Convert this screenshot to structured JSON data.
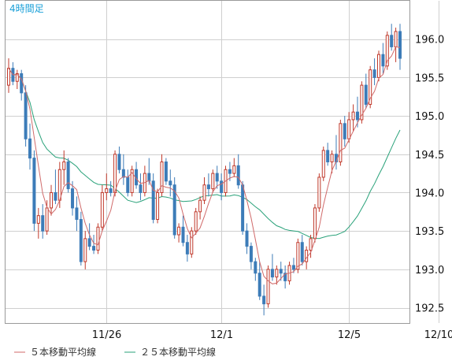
{
  "colors": {
    "up": "#c0392b",
    "down": "#3d7cb8",
    "ma5": "#d06a6a",
    "ma25": "#2aa27a",
    "grid": "#cfcfcf",
    "frame": "#9a9a9a",
    "period_label": "#1aa0d8"
  },
  "chart_data": {
    "type": "candlestick",
    "period_label": "4時間足",
    "ylim": [
      192.3,
      196.5
    ],
    "y_ticks": [
      "192.5",
      "193.0",
      "193.5",
      "194.0",
      "194.5",
      "195.0",
      "195.5",
      "196.0"
    ],
    "y_tick_values": [
      192.5,
      193.0,
      193.5,
      194.0,
      194.5,
      195.0,
      195.5,
      196.0
    ],
    "x_ticks": [
      {
        "label": "11/26",
        "index": 23
      },
      {
        "label": "12/1",
        "index": 50
      },
      {
        "label": "12/5",
        "index": 80
      },
      {
        "label": "12/10",
        "index": 101
      }
    ],
    "series_legend": [
      {
        "name": "５本移動平均線",
        "color": "#d06a6a"
      },
      {
        "name": "２５本移動平均線",
        "color": "#2aa27a"
      }
    ],
    "candles": [
      [
        195.4,
        195.75,
        195.3,
        195.62
      ],
      [
        195.62,
        195.7,
        195.4,
        195.45
      ],
      [
        195.45,
        195.6,
        195.35,
        195.55
      ],
      [
        195.55,
        195.6,
        195.2,
        195.3
      ],
      [
        195.3,
        195.4,
        194.6,
        194.7
      ],
      [
        194.7,
        194.9,
        194.3,
        194.45
      ],
      [
        194.45,
        194.55,
        193.5,
        193.6
      ],
      [
        193.6,
        193.8,
        193.4,
        193.7
      ],
      [
        193.7,
        193.85,
        193.4,
        193.5
      ],
      [
        193.5,
        193.9,
        193.45,
        193.8
      ],
      [
        193.8,
        194.1,
        193.7,
        194.0
      ],
      [
        194.0,
        194.3,
        193.85,
        193.9
      ],
      [
        193.9,
        194.4,
        193.8,
        194.3
      ],
      [
        194.3,
        194.55,
        194.1,
        194.4
      ],
      [
        194.4,
        194.45,
        194.0,
        194.05
      ],
      [
        194.05,
        194.15,
        193.7,
        193.8
      ],
      [
        193.8,
        193.95,
        193.5,
        193.65
      ],
      [
        193.65,
        193.75,
        193.05,
        193.1
      ],
      [
        193.1,
        193.5,
        193.0,
        193.4
      ],
      [
        193.4,
        193.6,
        193.25,
        193.3
      ],
      [
        193.3,
        193.45,
        193.2,
        193.25
      ],
      [
        193.25,
        193.6,
        193.2,
        193.55
      ],
      [
        193.55,
        194.1,
        193.5,
        194.0
      ],
      [
        194.0,
        194.25,
        193.9,
        194.05
      ],
      [
        194.05,
        194.15,
        193.95,
        194.0
      ],
      [
        194.0,
        194.55,
        193.95,
        194.5
      ],
      [
        194.5,
        194.6,
        194.25,
        194.3
      ],
      [
        194.3,
        194.5,
        194.1,
        194.2
      ],
      [
        194.2,
        194.3,
        193.95,
        194.0
      ],
      [
        194.0,
        194.35,
        193.95,
        194.3
      ],
      [
        194.3,
        194.4,
        194.05,
        194.1
      ],
      [
        194.1,
        194.25,
        193.9,
        194.0
      ],
      [
        194.0,
        194.35,
        193.95,
        194.25
      ],
      [
        194.25,
        194.45,
        194.1,
        194.15
      ],
      [
        194.15,
        194.25,
        193.6,
        193.65
      ],
      [
        193.65,
        194.05,
        193.6,
        194.0
      ],
      [
        194.0,
        194.5,
        193.95,
        194.4
      ],
      [
        194.4,
        194.45,
        194.1,
        194.15
      ],
      [
        194.15,
        194.3,
        193.95,
        194.1
      ],
      [
        194.1,
        194.2,
        193.4,
        193.45
      ],
      [
        193.45,
        193.6,
        193.35,
        193.55
      ],
      [
        193.55,
        193.7,
        193.3,
        193.35
      ],
      [
        193.35,
        193.45,
        193.1,
        193.2
      ],
      [
        193.2,
        193.55,
        193.15,
        193.5
      ],
      [
        193.5,
        193.8,
        193.45,
        193.75
      ],
      [
        193.75,
        193.95,
        193.65,
        193.9
      ],
      [
        193.9,
        194.2,
        193.85,
        194.1
      ],
      [
        194.1,
        194.25,
        193.95,
        194.05
      ],
      [
        194.05,
        194.3,
        194.0,
        194.25
      ],
      [
        194.25,
        194.35,
        194.05,
        194.15
      ],
      [
        194.15,
        194.25,
        193.9,
        194.0
      ],
      [
        194.0,
        194.35,
        193.95,
        194.3
      ],
      [
        194.3,
        194.4,
        194.15,
        194.25
      ],
      [
        194.25,
        194.45,
        194.2,
        194.35
      ],
      [
        194.35,
        194.5,
        194.05,
        194.1
      ],
      [
        194.1,
        194.15,
        193.45,
        193.5
      ],
      [
        193.5,
        193.6,
        193.2,
        193.3
      ],
      [
        193.3,
        193.35,
        193.0,
        193.1
      ],
      [
        193.1,
        193.15,
        192.85,
        192.95
      ],
      [
        192.95,
        193.1,
        192.6,
        192.65
      ],
      [
        192.65,
        192.8,
        192.4,
        192.55
      ],
      [
        192.55,
        193.05,
        192.5,
        193.0
      ],
      [
        193.0,
        193.2,
        192.85,
        192.9
      ],
      [
        192.9,
        193.05,
        192.8,
        193.0
      ],
      [
        193.0,
        193.1,
        192.85,
        192.95
      ],
      [
        192.95,
        193.05,
        192.75,
        192.85
      ],
      [
        192.85,
        193.1,
        192.8,
        193.05
      ],
      [
        193.05,
        193.15,
        192.95,
        193.0
      ],
      [
        193.0,
        193.4,
        192.95,
        193.35
      ],
      [
        193.35,
        193.45,
        193.05,
        193.1
      ],
      [
        193.1,
        193.3,
        193.0,
        193.25
      ],
      [
        193.25,
        193.45,
        193.15,
        193.4
      ],
      [
        193.4,
        193.85,
        193.35,
        193.8
      ],
      [
        193.8,
        194.25,
        193.75,
        194.2
      ],
      [
        194.2,
        194.6,
        194.15,
        194.55
      ],
      [
        194.55,
        194.65,
        194.35,
        194.4
      ],
      [
        194.4,
        194.55,
        194.25,
        194.5
      ],
      [
        194.5,
        194.75,
        194.3,
        194.4
      ],
      [
        194.4,
        194.95,
        194.35,
        194.9
      ],
      [
        194.9,
        195.0,
        194.6,
        194.7
      ],
      [
        194.7,
        195.05,
        194.65,
        194.95
      ],
      [
        194.95,
        195.15,
        194.8,
        195.05
      ],
      [
        195.05,
        195.25,
        194.85,
        194.95
      ],
      [
        194.95,
        195.45,
        194.9,
        195.4
      ],
      [
        195.4,
        195.55,
        195.1,
        195.15
      ],
      [
        195.15,
        195.65,
        195.1,
        195.6
      ],
      [
        195.6,
        195.75,
        195.4,
        195.5
      ],
      [
        195.5,
        195.85,
        195.45,
        195.8
      ],
      [
        195.8,
        195.95,
        195.55,
        195.65
      ],
      [
        195.65,
        196.1,
        195.6,
        196.05
      ],
      [
        196.05,
        196.2,
        195.85,
        195.9
      ],
      [
        195.9,
        196.15,
        195.7,
        196.1
      ],
      [
        196.1,
        196.2,
        195.6,
        195.75
      ]
    ]
  }
}
